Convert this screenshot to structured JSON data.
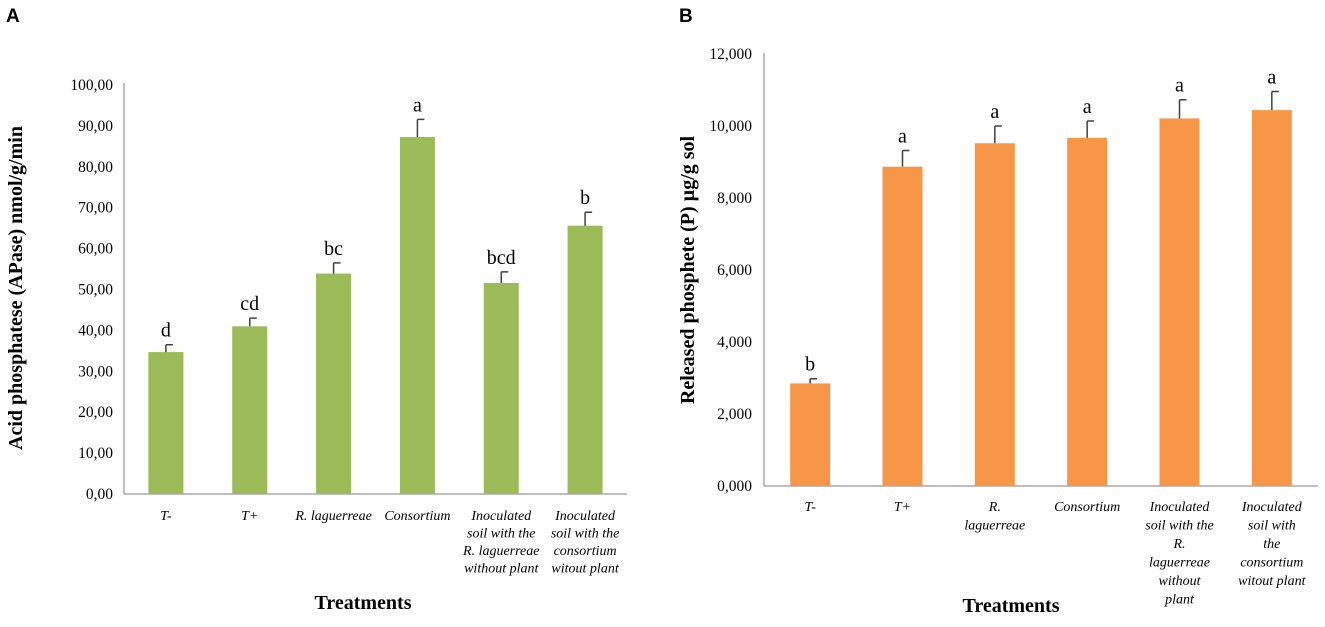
{
  "colors": {
    "a": "#9bbb59",
    "b": "#f79646"
  },
  "chart_data": [
    {
      "panel": "A",
      "type": "bar",
      "xlabel": "Treatments",
      "ylabel": "Acid phosphatese (APase) nmol/g/min",
      "ylim": [
        0,
        100
      ],
      "yticks": [
        "0,00",
        "10,00",
        "20,00",
        "30,00",
        "40,00",
        "50,00",
        "60,00",
        "70,00",
        "80,00",
        "90,00",
        "100,00"
      ],
      "categories": [
        [
          "T-"
        ],
        [
          "T+"
        ],
        [
          "R. laguerreae"
        ],
        [
          "Consortium"
        ],
        [
          "Inoculated",
          "soil with the",
          "R. laguerreae",
          "without plant"
        ],
        [
          "Inoculated",
          "soil  with the",
          "consortium",
          "witout plant"
        ]
      ],
      "values": [
        34.7,
        41.0,
        53.9,
        87.3,
        51.6,
        65.6
      ],
      "errors": [
        1.8,
        2.0,
        2.6,
        4.3,
        2.7,
        3.3
      ],
      "labels": [
        "d",
        "cd",
        "bc",
        "a",
        "bcd",
        "b"
      ]
    },
    {
      "panel": "B",
      "type": "bar",
      "xlabel": "Treatments",
      "ylabel": "Released phosphete (P) µg/g sol",
      "ylim": [
        0,
        12
      ],
      "yticks": [
        "0,000",
        "2,000",
        "4,000",
        "6,000",
        "8,000",
        "10,000",
        "12,000"
      ],
      "categories": [
        [
          "T-"
        ],
        [
          "T+"
        ],
        [
          "R.",
          "laguerreae"
        ],
        [
          "Consortium"
        ],
        [
          "Inoculated",
          "soil with the",
          "R.",
          "laguerreae",
          "without",
          "plant"
        ],
        [
          "Inoculated",
          "soil  with",
          "the",
          "consortium",
          "witout plant"
        ]
      ],
      "values": [
        2.85,
        8.87,
        9.52,
        9.67,
        10.21,
        10.44
      ],
      "errors": [
        0.13,
        0.45,
        0.48,
        0.47,
        0.52,
        0.52
      ],
      "labels": [
        "b",
        "a",
        "a",
        "a",
        "a",
        "a"
      ]
    }
  ]
}
